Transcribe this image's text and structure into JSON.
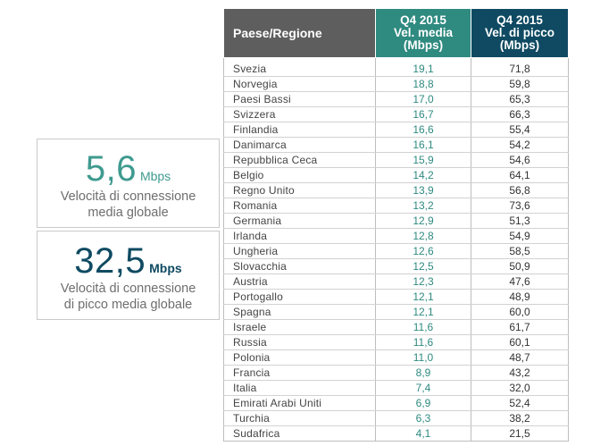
{
  "stats": {
    "average": {
      "value": "5,6",
      "unit": "Mbps",
      "caption_line1": "Velocità di connessione",
      "caption_line2": "media globale"
    },
    "peak": {
      "value": "32,5",
      "unit": "Mbps",
      "caption_line1": "Velocità di connessione",
      "caption_line2": "di picco media globale"
    }
  },
  "table": {
    "headers": {
      "country": "Paese/Regione",
      "avg_line1": "Q4 2015",
      "avg_line2": "Vel. media",
      "avg_line3": "(Mbps)",
      "peak_line1": "Q4 2015",
      "peak_line2": "Vel. di picco",
      "peak_line3": "(Mbps)"
    },
    "rows": [
      {
        "country": "Svezia",
        "avg": "19,1",
        "peak": "71,8"
      },
      {
        "country": "Norvegia",
        "avg": "18,8",
        "peak": "59,8"
      },
      {
        "country": "Paesi Bassi",
        "avg": "17,0",
        "peak": "65,3"
      },
      {
        "country": "Svizzera",
        "avg": "16,7",
        "peak": "66,3"
      },
      {
        "country": "Finlandia",
        "avg": "16,6",
        "peak": "55,4"
      },
      {
        "country": "Danimarca",
        "avg": "16,1",
        "peak": "54,2"
      },
      {
        "country": "Repubblica Ceca",
        "avg": "15,9",
        "peak": "54,6"
      },
      {
        "country": "Belgio",
        "avg": "14,2",
        "peak": "64,1"
      },
      {
        "country": "Regno Unito",
        "avg": "13,9",
        "peak": "56,8"
      },
      {
        "country": "Romania",
        "avg": "13,2",
        "peak": "73,6"
      },
      {
        "country": "Germania",
        "avg": "12,9",
        "peak": "51,3"
      },
      {
        "country": "Irlanda",
        "avg": "12,8",
        "peak": "54,9"
      },
      {
        "country": "Ungheria",
        "avg": "12,6",
        "peak": "58,5"
      },
      {
        "country": "Slovacchia",
        "avg": "12,5",
        "peak": "50,9"
      },
      {
        "country": "Austria",
        "avg": "12,3",
        "peak": "47,6"
      },
      {
        "country": "Portogallo",
        "avg": "12,1",
        "peak": "48,9"
      },
      {
        "country": "Spagna",
        "avg": "12,1",
        "peak": "60,0"
      },
      {
        "country": "Israele",
        "avg": "11,6",
        "peak": "61,7"
      },
      {
        "country": "Russia",
        "avg": "11,6",
        "peak": "60,1"
      },
      {
        "country": "Polonia",
        "avg": "11,0",
        "peak": "48,7"
      },
      {
        "country": "Francia",
        "avg": "8,9",
        "peak": "43,2"
      },
      {
        "country": "Italia",
        "avg": "7,4",
        "peak": "32,0"
      },
      {
        "country": "Emirati Arabi Uniti",
        "avg": "6,9",
        "peak": "52,4"
      },
      {
        "country": "Turchia",
        "avg": "6,3",
        "peak": "38,2"
      },
      {
        "country": "Sudafrica",
        "avg": "4,1",
        "peak": "21,5"
      }
    ]
  },
  "colors": {
    "teal": "#2f8a80",
    "navy": "#0f4a62",
    "gray_header": "#5e5e5e"
  }
}
